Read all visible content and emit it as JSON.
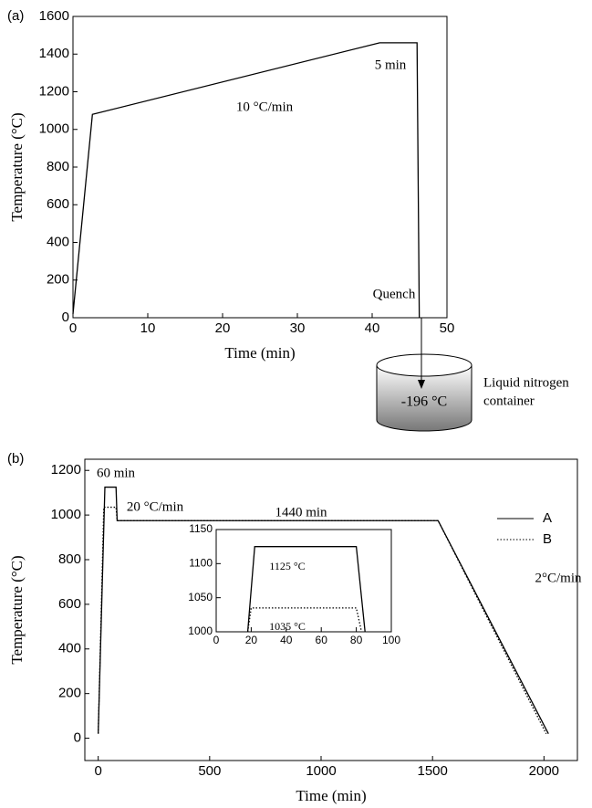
{
  "chart_data": [
    {
      "type": "line",
      "label": "(a)",
      "x_label": "Time (min)",
      "y_label": "Temperature (°C)",
      "xlim": [
        0,
        50
      ],
      "xticks": [
        0,
        10,
        20,
        30,
        40,
        50
      ],
      "ylim": [
        0,
        1600
      ],
      "yticks": [
        0,
        200,
        400,
        600,
        800,
        1000,
        1200,
        1400,
        1600
      ],
      "series": [
        {
          "color": "#000000",
          "style": "solid",
          "x": [
            0,
            2.6,
            41,
            46,
            46.3
          ],
          "values": [
            20,
            1080,
            1460,
            1460,
            0
          ]
        }
      ],
      "annotations": [
        "10 °C/min",
        "5 min",
        "Quench"
      ],
      "container_text": "-196 °C",
      "container_label": [
        "Liquid nitrogen",
        "container"
      ]
    },
    {
      "type": "line",
      "label": "(b)",
      "x_label": "Time (min)",
      "y_label": "Temperature (°C)",
      "xlim": [
        -60,
        2150
      ],
      "xticks": [
        0,
        500,
        1000,
        1500,
        2000
      ],
      "ylim": [
        -100,
        1250
      ],
      "yticks": [
        0,
        200,
        400,
        600,
        800,
        1000,
        1200
      ],
      "legend": "upper right",
      "series": [
        {
          "name": "A",
          "color": "#000000",
          "style": "solid",
          "x": [
            0,
            30,
            80,
            85,
            1525,
            2020
          ],
          "values": [
            20,
            1125,
            1125,
            975,
            975,
            20
          ]
        },
        {
          "name": "B",
          "color": "#000000",
          "style": "dotted",
          "x": [
            0,
            25,
            80,
            85,
            1525,
            2010
          ],
          "values": [
            20,
            1035,
            1035,
            975,
            975,
            20
          ]
        }
      ],
      "annotations": [
        "60 min",
        "20 °C/min",
        "1440 min",
        "2°C/min"
      ]
    },
    {
      "type": "line",
      "inset": true,
      "xlim": [
        0,
        100
      ],
      "xticks": [
        0,
        20,
        40,
        60,
        80,
        100
      ],
      "ylim": [
        1000,
        1150
      ],
      "yticks": [
        1000,
        1050,
        1100,
        1150
      ],
      "series": [
        {
          "color": "#000000",
          "style": "solid",
          "x": [
            18,
            22,
            80,
            85
          ],
          "values": [
            1000,
            1125,
            1125,
            1000
          ]
        },
        {
          "color": "#000000",
          "style": "dotted",
          "x": [
            18,
            20,
            80,
            83
          ],
          "values": [
            1000,
            1035,
            1035,
            1000
          ]
        }
      ],
      "annotations": [
        "1125 °C",
        "1035 °C"
      ]
    }
  ]
}
